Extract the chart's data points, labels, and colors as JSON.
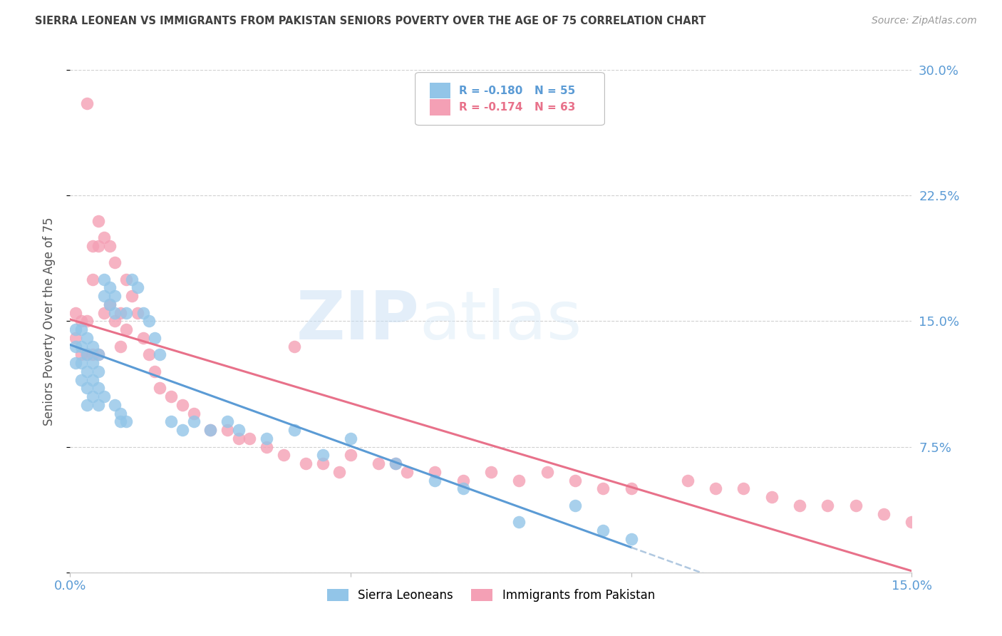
{
  "title": "SIERRA LEONEAN VS IMMIGRANTS FROM PAKISTAN SENIORS POVERTY OVER THE AGE OF 75 CORRELATION CHART",
  "source": "Source: ZipAtlas.com",
  "ylabel": "Seniors Poverty Over the Age of 75",
  "x_min": 0.0,
  "x_max": 0.15,
  "y_min": 0.0,
  "y_max": 0.3,
  "yticks": [
    0.0,
    0.075,
    0.15,
    0.225,
    0.3
  ],
  "ytick_labels": [
    "",
    "7.5%",
    "15.0%",
    "22.5%",
    "30.0%"
  ],
  "watermark_zip": "ZIP",
  "watermark_atlas": "atlas",
  "legend_r1": "-0.180",
  "legend_n1": "55",
  "legend_r2": "-0.174",
  "legend_n2": "63",
  "color_blue": "#92C5E8",
  "color_pink": "#F4A0B5",
  "color_line_blue": "#5B9BD5",
  "color_line_pink": "#E8718A",
  "color_line_dash": "#B0C8E0",
  "grid_color": "#D0D0D0",
  "title_color": "#404040",
  "axis_label_color": "#5B9BD5",
  "sierra_x": [
    0.001,
    0.001,
    0.001,
    0.002,
    0.002,
    0.002,
    0.002,
    0.003,
    0.003,
    0.003,
    0.003,
    0.003,
    0.004,
    0.004,
    0.004,
    0.004,
    0.005,
    0.005,
    0.005,
    0.005,
    0.006,
    0.006,
    0.006,
    0.007,
    0.007,
    0.008,
    0.008,
    0.008,
    0.009,
    0.009,
    0.01,
    0.01,
    0.011,
    0.012,
    0.013,
    0.014,
    0.015,
    0.016,
    0.018,
    0.02,
    0.022,
    0.025,
    0.028,
    0.03,
    0.035,
    0.04,
    0.045,
    0.05,
    0.058,
    0.065,
    0.07,
    0.08,
    0.09,
    0.095,
    0.1
  ],
  "sierra_y": [
    0.145,
    0.135,
    0.125,
    0.145,
    0.135,
    0.125,
    0.115,
    0.14,
    0.13,
    0.12,
    0.11,
    0.1,
    0.135,
    0.125,
    0.115,
    0.105,
    0.13,
    0.12,
    0.11,
    0.1,
    0.175,
    0.165,
    0.105,
    0.17,
    0.16,
    0.165,
    0.155,
    0.1,
    0.095,
    0.09,
    0.155,
    0.09,
    0.175,
    0.17,
    0.155,
    0.15,
    0.14,
    0.13,
    0.09,
    0.085,
    0.09,
    0.085,
    0.09,
    0.085,
    0.08,
    0.085,
    0.07,
    0.08,
    0.065,
    0.055,
    0.05,
    0.03,
    0.04,
    0.025,
    0.02
  ],
  "pakistan_x": [
    0.001,
    0.001,
    0.002,
    0.002,
    0.003,
    0.003,
    0.003,
    0.004,
    0.004,
    0.004,
    0.005,
    0.005,
    0.005,
    0.006,
    0.006,
    0.007,
    0.007,
    0.008,
    0.008,
    0.009,
    0.009,
    0.01,
    0.01,
    0.011,
    0.012,
    0.013,
    0.014,
    0.015,
    0.016,
    0.018,
    0.02,
    0.022,
    0.025,
    0.028,
    0.03,
    0.032,
    0.035,
    0.038,
    0.04,
    0.042,
    0.045,
    0.048,
    0.05,
    0.055,
    0.058,
    0.06,
    0.065,
    0.07,
    0.075,
    0.08,
    0.085,
    0.09,
    0.095,
    0.1,
    0.11,
    0.115,
    0.12,
    0.125,
    0.13,
    0.135,
    0.14,
    0.145,
    0.15
  ],
  "pakistan_y": [
    0.155,
    0.14,
    0.15,
    0.13,
    0.28,
    0.15,
    0.13,
    0.195,
    0.175,
    0.13,
    0.21,
    0.195,
    0.13,
    0.2,
    0.155,
    0.195,
    0.16,
    0.185,
    0.15,
    0.155,
    0.135,
    0.175,
    0.145,
    0.165,
    0.155,
    0.14,
    0.13,
    0.12,
    0.11,
    0.105,
    0.1,
    0.095,
    0.085,
    0.085,
    0.08,
    0.08,
    0.075,
    0.07,
    0.135,
    0.065,
    0.065,
    0.06,
    0.07,
    0.065,
    0.065,
    0.06,
    0.06,
    0.055,
    0.06,
    0.055,
    0.06,
    0.055,
    0.05,
    0.05,
    0.055,
    0.05,
    0.05,
    0.045,
    0.04,
    0.04,
    0.04,
    0.035,
    0.03
  ]
}
